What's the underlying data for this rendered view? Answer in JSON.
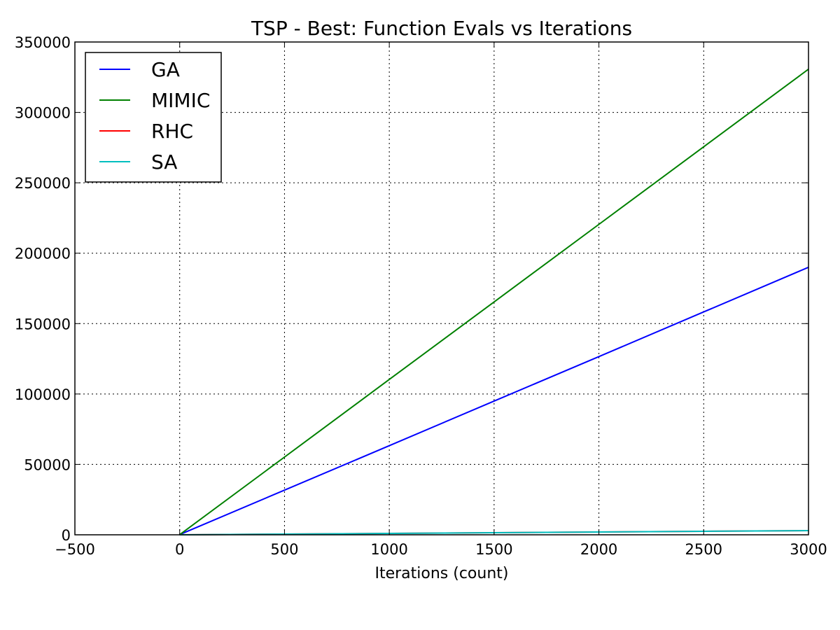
{
  "chart_data": {
    "type": "line",
    "title": "TSP - Best: Function Evals vs Iterations",
    "xlabel": "Iterations (count)",
    "ylabel": "",
    "xlim": [
      -500,
      3000
    ],
    "ylim": [
      0,
      350000
    ],
    "x_ticks": [
      -500,
      0,
      500,
      1000,
      1500,
      2000,
      2500,
      3000
    ],
    "x_tick_labels": [
      "−500",
      "0",
      "500",
      "1000",
      "1500",
      "2000",
      "2500",
      "3000"
    ],
    "y_ticks": [
      0,
      50000,
      100000,
      150000,
      200000,
      250000,
      300000,
      350000
    ],
    "y_tick_labels": [
      "0",
      "50000",
      "100000",
      "150000",
      "200000",
      "250000",
      "300000",
      "350000"
    ],
    "grid": true,
    "legend_position": "top-left",
    "series": [
      {
        "name": "GA",
        "color": "#0000ff",
        "x": [
          0,
          500,
          1000,
          1500,
          2000,
          2500,
          3000
        ],
        "y": [
          150,
          31700,
          63300,
          95000,
          126600,
          158300,
          190000
        ]
      },
      {
        "name": "MIMIC",
        "color": "#008000",
        "x": [
          0,
          500,
          1000,
          1500,
          2000,
          2500,
          3000
        ],
        "y": [
          100,
          55200,
          110300,
          165400,
          220500,
          275600,
          330700
        ]
      },
      {
        "name": "RHC",
        "color": "#ff0000",
        "x": [
          0,
          500,
          1000,
          1500,
          2000,
          2500,
          3000
        ],
        "y": [
          1,
          501,
          1001,
          1501,
          2001,
          2501,
          3001
        ]
      },
      {
        "name": "SA",
        "color": "#00bfbf",
        "x": [
          0,
          500,
          1000,
          1500,
          2000,
          2500,
          3000
        ],
        "y": [
          1,
          501,
          1001,
          1501,
          2001,
          2501,
          3001
        ]
      }
    ]
  }
}
